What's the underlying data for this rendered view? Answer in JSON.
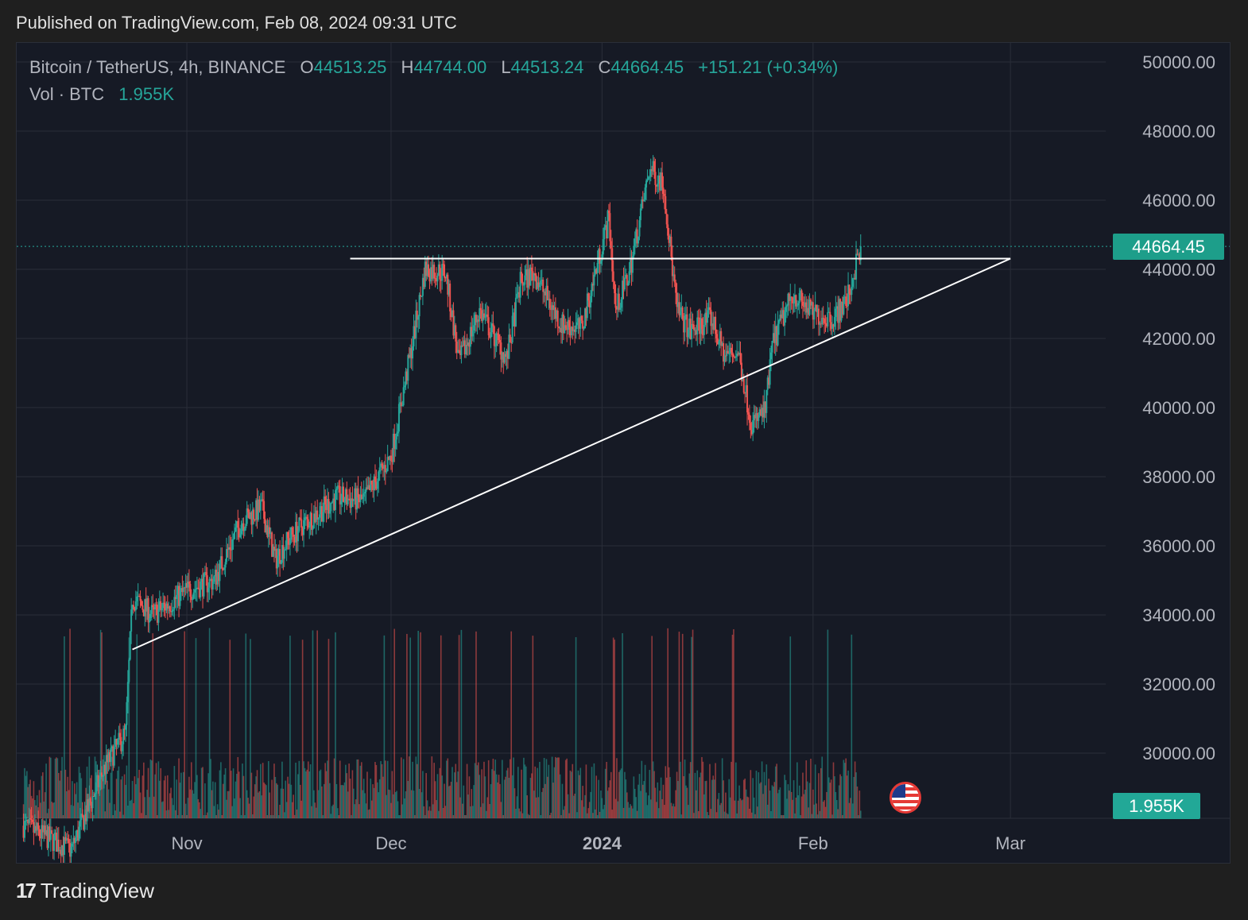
{
  "header": {
    "published": "Published on TradingView.com, Feb 08, 2024 09:31 UTC"
  },
  "legend": {
    "symbol": "Bitcoin / TetherUS, 4h, BINANCE",
    "o_label": "O",
    "o_value": "44513.25",
    "h_label": "H",
    "h_value": "44744.00",
    "l_label": "L",
    "l_value": "44513.24",
    "c_label": "C",
    "c_value": "44664.45",
    "change": "+151.21 (+0.34%)",
    "vol_label": "Vol · BTC",
    "vol_value": "1.955K"
  },
  "price_tag": "44664.45",
  "volume_tag": "1.955K",
  "footer": {
    "brand": "TradingView",
    "mark": "17"
  },
  "colors": {
    "up": "#26a69a",
    "down": "#ef5350",
    "background": "#161a25",
    "grid": "#2a2e39",
    "trendline": "#ffffff"
  },
  "chart_data": {
    "type": "candlestick",
    "title": "Bitcoin / TetherUS, 4h, BINANCE",
    "y_ticks": [
      "50000.00",
      "48000.00",
      "46000.00",
      "44000.00",
      "42000.00",
      "40000.00",
      "38000.00",
      "36000.00",
      "34000.00",
      "32000.00",
      "30000.00"
    ],
    "ylim": [
      28000,
      50300
    ],
    "x_ticks": [
      {
        "label": "Nov",
        "date": "2023-11-01",
        "bold": false
      },
      {
        "label": "Dec",
        "date": "2023-12-01",
        "bold": false
      },
      {
        "label": "2024",
        "date": "2024-01-01",
        "bold": true
      },
      {
        "label": "Feb",
        "date": "2024-02-01",
        "bold": false
      },
      {
        "label": "Mar",
        "date": "2024-03-01",
        "bold": false
      }
    ],
    "xlim": [
      "2023-10-07",
      "2024-03-15"
    ],
    "grid": true,
    "last_price": 44664.45,
    "price_anchors": [
      {
        "date": "2023-10-08",
        "price": 27900
      },
      {
        "date": "2023-10-15",
        "price": 27200
      },
      {
        "date": "2023-10-20",
        "price": 29600
      },
      {
        "date": "2023-10-23",
        "price": 30600
      },
      {
        "date": "2023-10-24",
        "price": 34500
      },
      {
        "date": "2023-10-27",
        "price": 34000
      },
      {
        "date": "2023-11-01",
        "price": 34700
      },
      {
        "date": "2023-11-05",
        "price": 35000
      },
      {
        "date": "2023-11-09",
        "price": 36700
      },
      {
        "date": "2023-11-12",
        "price": 37100
      },
      {
        "date": "2023-11-14",
        "price": 35600
      },
      {
        "date": "2023-11-16",
        "price": 36200
      },
      {
        "date": "2023-11-18",
        "price": 36600
      },
      {
        "date": "2023-11-23",
        "price": 37400
      },
      {
        "date": "2023-11-27",
        "price": 37300
      },
      {
        "date": "2023-12-01",
        "price": 38600
      },
      {
        "date": "2023-12-04",
        "price": 41700
      },
      {
        "date": "2023-12-06",
        "price": 44000
      },
      {
        "date": "2023-12-09",
        "price": 43900
      },
      {
        "date": "2023-12-11",
        "price": 41300
      },
      {
        "date": "2023-12-14",
        "price": 42800
      },
      {
        "date": "2023-12-18",
        "price": 41400
      },
      {
        "date": "2023-12-20",
        "price": 43600
      },
      {
        "date": "2023-12-22",
        "price": 43900
      },
      {
        "date": "2023-12-26",
        "price": 42400
      },
      {
        "date": "2023-12-29",
        "price": 42300
      },
      {
        "date": "2024-01-02",
        "price": 45500
      },
      {
        "date": "2024-01-03",
        "price": 42800
      },
      {
        "date": "2024-01-05",
        "price": 43900
      },
      {
        "date": "2024-01-08",
        "price": 46900
      },
      {
        "date": "2024-01-10",
        "price": 46500
      },
      {
        "date": "2024-01-12",
        "price": 42800
      },
      {
        "date": "2024-01-14",
        "price": 42200
      },
      {
        "date": "2024-01-17",
        "price": 42600
      },
      {
        "date": "2024-01-19",
        "price": 41500
      },
      {
        "date": "2024-01-21",
        "price": 41600
      },
      {
        "date": "2024-01-23",
        "price": 39500
      },
      {
        "date": "2024-01-25",
        "price": 39900
      },
      {
        "date": "2024-01-26",
        "price": 41800
      },
      {
        "date": "2024-01-29",
        "price": 43300
      },
      {
        "date": "2024-02-01",
        "price": 42700
      },
      {
        "date": "2024-02-04",
        "price": 42600
      },
      {
        "date": "2024-02-06",
        "price": 43100
      },
      {
        "date": "2024-02-08",
        "price": 44664
      }
    ],
    "trendlines": [
      {
        "name": "resistance",
        "from": {
          "date": "2023-11-25",
          "price": 44310
        },
        "to": {
          "date": "2024-03-01",
          "price": 44310
        }
      },
      {
        "name": "support",
        "from": {
          "date": "2023-10-24",
          "price": 33000
        },
        "to": {
          "date": "2024-03-01",
          "price": 44310
        }
      }
    ]
  }
}
